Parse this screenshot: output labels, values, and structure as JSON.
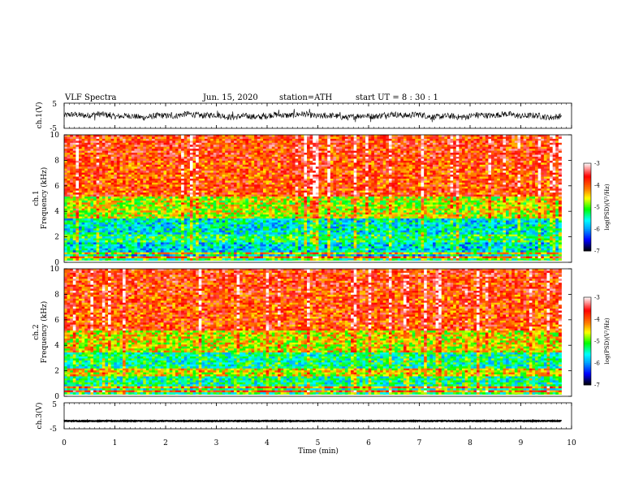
{
  "header": {
    "title": "VLF  Spectra",
    "date": "Jun. 15, 2020",
    "station": "station=ATH",
    "start": "start  UT  =   8  : 30 : 1"
  },
  "colors": {
    "waveform": "#000000",
    "scale": [
      "#000000",
      "#0000ff",
      "#00a0ff",
      "#00ffff",
      "#00ff00",
      "#ffff00",
      "#ff8000",
      "#ff0000",
      "#ffffff"
    ]
  },
  "chart_data": [
    {
      "type": "line",
      "id": "ch1-waveform",
      "ylabel": "ch.1(V)",
      "yticks": [
        "5",
        "-5"
      ],
      "ylim": [
        -5,
        5
      ],
      "xlim": [
        0,
        10
      ],
      "description_of_values": "voltage waveform fluctuating roughly between -2 and 2 V over 0 to 9.8 min"
    },
    {
      "type": "heatmap",
      "id": "ch1-spectrogram",
      "ylabel": "ch.1\nFrequency (kHz)",
      "yticks": [
        "10",
        "8",
        "6",
        "4",
        "2",
        "0"
      ],
      "ylim": [
        0,
        10
      ],
      "xlim": [
        0,
        9.8
      ],
      "colorbar": {
        "label": "log(PSD)(V²/Hz)",
        "ticks": [
          "-3",
          "-4",
          "-5",
          "-6",
          "-7"
        ],
        "range": [
          -7,
          -3
        ]
      },
      "bands": [
        {
          "fmin": 0.0,
          "fmax": 0.5,
          "level": -5.2
        },
        {
          "fmin": 0.5,
          "fmax": 1.6,
          "level": -5.7
        },
        {
          "fmin": 1.6,
          "fmax": 2.2,
          "level": -5.3
        },
        {
          "fmin": 2.2,
          "fmax": 3.5,
          "level": -5.6
        },
        {
          "fmin": 3.5,
          "fmax": 5.2,
          "level": -4.7
        },
        {
          "fmin": 5.2,
          "fmax": 8.0,
          "level": -3.9
        },
        {
          "fmin": 8.0,
          "fmax": 10.0,
          "level": -3.8
        }
      ]
    },
    {
      "type": "heatmap",
      "id": "ch2-spectrogram",
      "ylabel": "ch.2\nFrequency (kHz)",
      "yticks": [
        "10",
        "8",
        "6",
        "4",
        "2",
        "0"
      ],
      "ylim": [
        0,
        10
      ],
      "xlim": [
        0,
        9.8
      ],
      "colorbar": {
        "label": "log(PSD)(V²/Hz)",
        "ticks": [
          "-3",
          "-4",
          "-5",
          "-6",
          "-7"
        ],
        "range": [
          -7,
          -3
        ]
      },
      "bands": [
        {
          "fmin": 0.0,
          "fmax": 0.5,
          "level": -5.2
        },
        {
          "fmin": 0.5,
          "fmax": 1.6,
          "level": -5.4
        },
        {
          "fmin": 1.6,
          "fmax": 2.2,
          "level": -4.6
        },
        {
          "fmin": 2.2,
          "fmax": 3.5,
          "level": -5.4
        },
        {
          "fmin": 3.5,
          "fmax": 5.2,
          "level": -4.6
        },
        {
          "fmin": 5.2,
          "fmax": 8.0,
          "level": -3.9
        },
        {
          "fmin": 8.0,
          "fmax": 10.0,
          "level": -3.8
        }
      ]
    },
    {
      "type": "line",
      "id": "ch3-waveform",
      "ylabel": "ch.3(V)",
      "yticks": [
        "5",
        "-5"
      ],
      "ylim": [
        -5,
        5
      ],
      "xlim": [
        0,
        10
      ],
      "description_of_values": "nearly flat trace near -2 V from 0 to 9.8 min"
    }
  ],
  "xaxis": {
    "label": "Time  (min)",
    "ticks": [
      "0",
      "1",
      "2",
      "3",
      "4",
      "5",
      "6",
      "7",
      "8",
      "9",
      "10"
    ]
  }
}
